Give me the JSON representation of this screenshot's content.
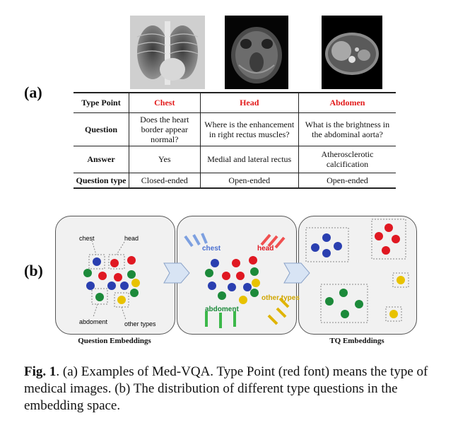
{
  "panel_a": {
    "label": "(a)",
    "images": [
      {
        "name": "chest x-ray"
      },
      {
        "name": "head mri"
      },
      {
        "name": "abdomen ct"
      }
    ],
    "table": {
      "header": [
        "Type Point",
        "Chest",
        "Head",
        "Abdomen"
      ],
      "rows": [
        [
          "Question",
          "Does the heart border appear normal?",
          "Where is the enhancement in right rectus muscles?",
          "What is the brightness in the abdominal aorta?"
        ],
        [
          "Answer",
          "Yes",
          "Medial and lateral rectus",
          "Atherosclerotic calcification"
        ],
        [
          "Question type",
          "Closed-ended",
          "Open-ended",
          "Open-ended"
        ]
      ]
    }
  },
  "panel_b": {
    "label": "(b)",
    "left_labels": {
      "chest": "chest",
      "head": "head",
      "abdoment": "abdoment",
      "other": "other types"
    },
    "middle_labels": {
      "chest": "chest",
      "head": "head",
      "abdoment": "abdoment",
      "other": "other types"
    },
    "left_caption": "Question Embeddings",
    "right_caption": "TQ Embeddings"
  },
  "caption": {
    "fig": "Fig. 1",
    "text": ". (a) Examples of Med-VQA. Type Point (red font) means the type of medical images. (b) The distribution of different type questions in the embedding space."
  },
  "colors": {
    "blue": "#2a3fb0",
    "red": "#e01822",
    "green": "#1c8a3a",
    "yellow": "#e8c200",
    "accent_red": "#e21b1b"
  }
}
